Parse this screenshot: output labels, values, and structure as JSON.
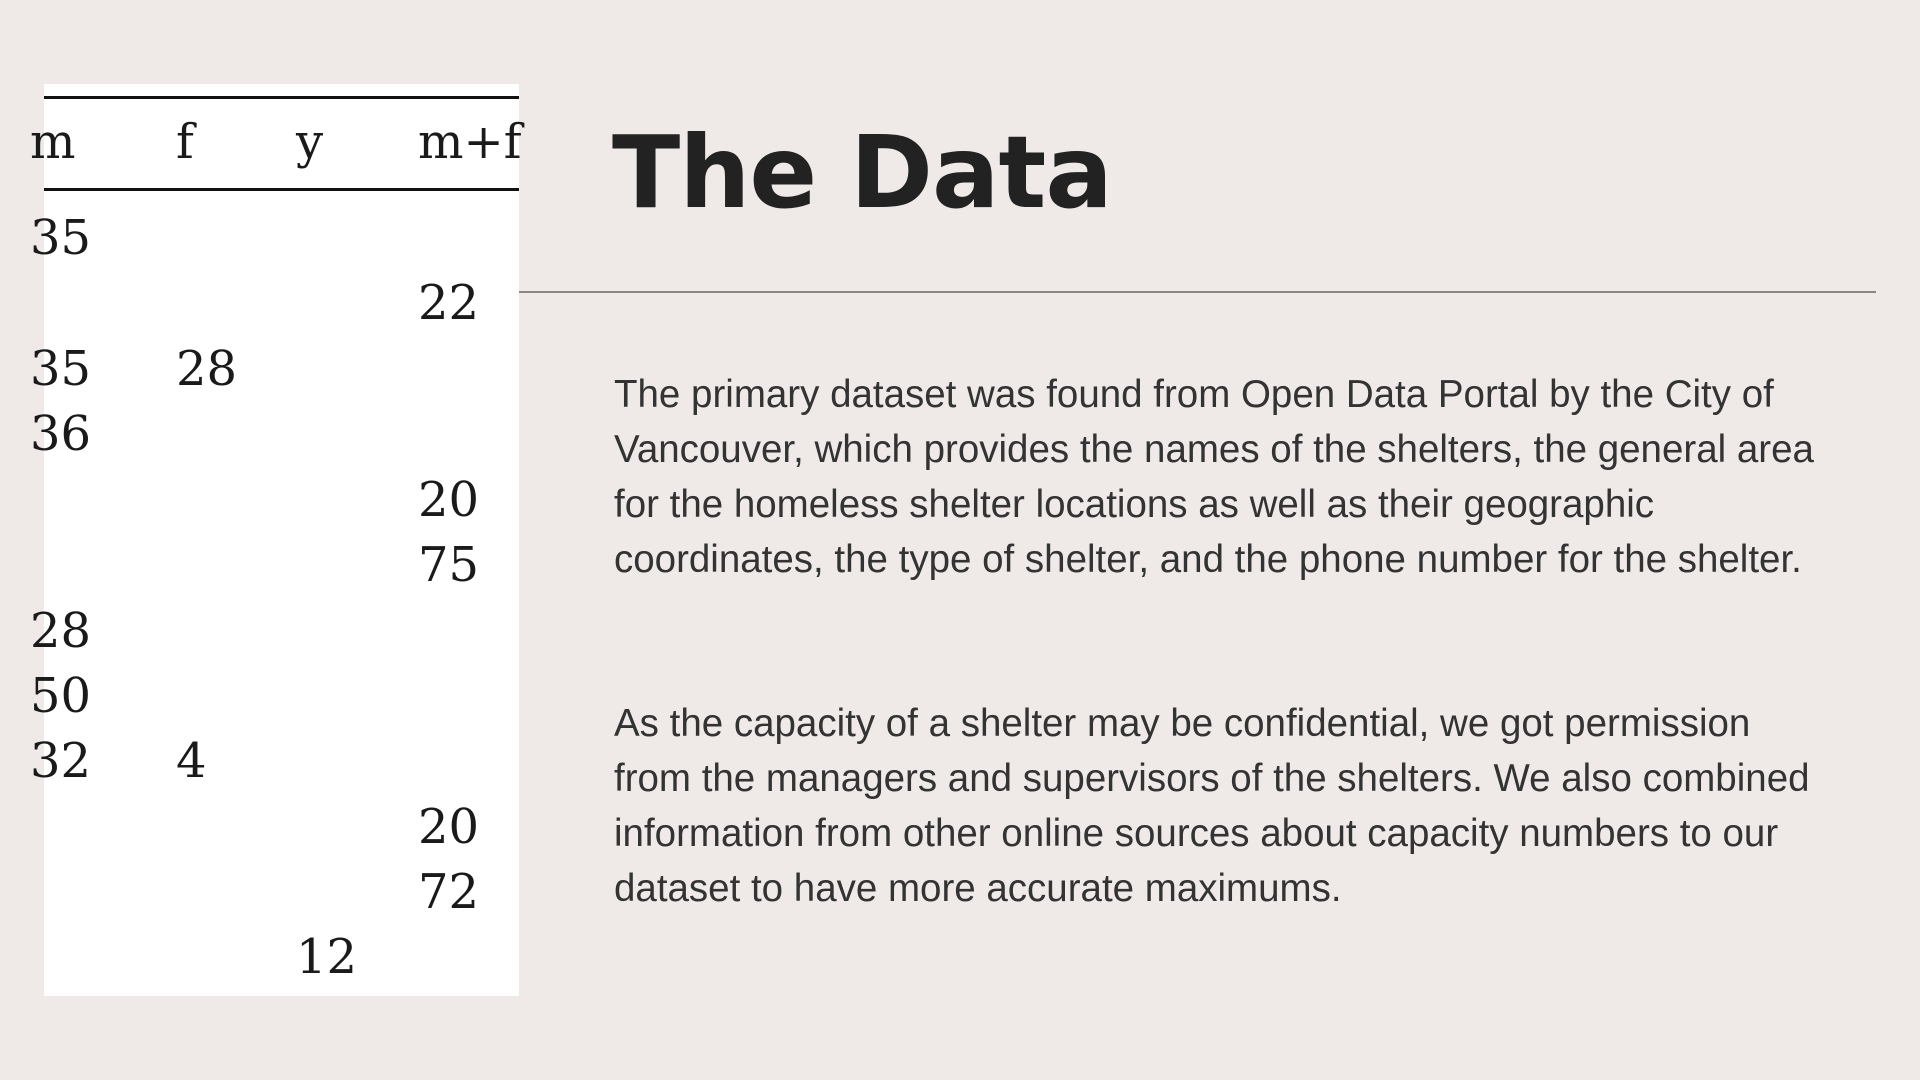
{
  "table": {
    "headers": [
      "m",
      "f",
      "y",
      "m+f"
    ],
    "rows": [
      [
        "35",
        "",
        "",
        ""
      ],
      [
        "",
        "",
        "",
        "22"
      ],
      [
        "35",
        "28",
        "",
        ""
      ],
      [
        "36",
        "",
        "",
        ""
      ],
      [
        "",
        "",
        "",
        "20"
      ],
      [
        "",
        "",
        "",
        "75"
      ],
      [
        "28",
        "",
        "",
        ""
      ],
      [
        "50",
        "",
        "",
        ""
      ],
      [
        "32",
        "4",
        "",
        ""
      ],
      [
        "",
        "",
        "",
        "20"
      ],
      [
        "",
        "",
        "",
        "72"
      ],
      [
        "",
        "",
        "12",
        ""
      ]
    ]
  },
  "content": {
    "title": "The Data",
    "paragraph_1": "The primary dataset was found from Open Data Portal by the City of Vancouver, which provides the names of the shelters, the general area for the homeless shelter locations as well as their geographic coordinates, the type of shelter, and the phone number for the shelter.",
    "paragraph_2": "As the capacity of a shelter may be confidential, we got permission from the managers and supervisors of the shelters. We also combined information from other online sources about capacity numbers to our dataset to have more accurate maximums."
  },
  "colors": {
    "background": "#efeae7",
    "title": "#222222",
    "body_text": "#333333",
    "divider": "#8a8786"
  }
}
